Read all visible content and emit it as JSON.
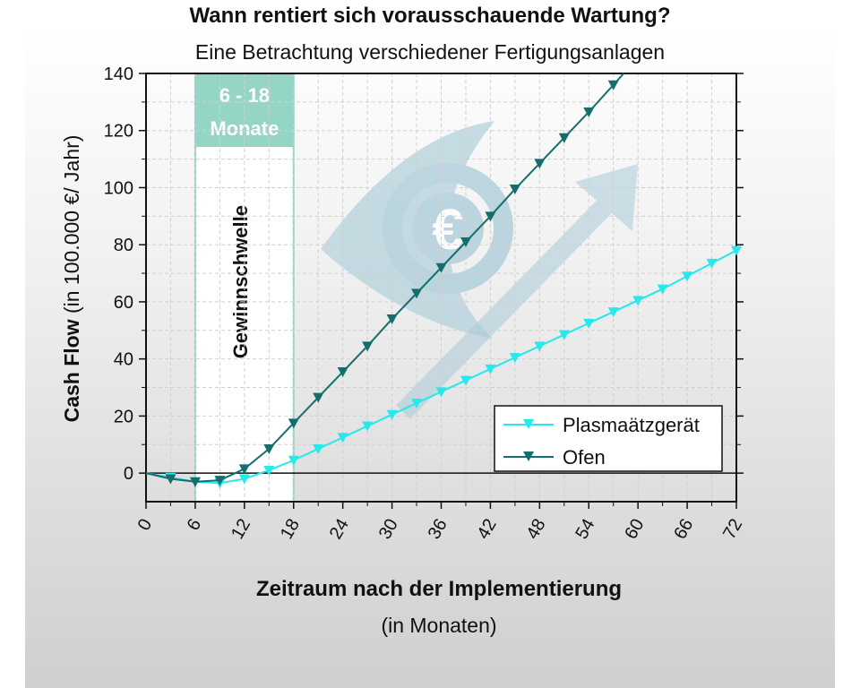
{
  "colors": {
    "plasma": "#27e8ea",
    "ofen": "#146e6e",
    "threshold_fill": "#8fd3c2",
    "watermark": "#a9cbd8"
  },
  "chart_data": {
    "type": "line",
    "title": "Wann rentiert sich vorausschauende Wartung?",
    "subtitle": "Eine Betrachtung verschiedener Fertigungsanlagen",
    "xlabel": "Zeitraum nach der Implementierung",
    "xlabel_sub": "(in Monaten)",
    "ylabel_bold": "Cash Flow",
    "ylabel_rest": " (in 100.000 €/ Jahr)",
    "xlim": [
      0,
      72
    ],
    "ylim": [
      -10,
      140
    ],
    "x_ticks": [
      0,
      6,
      12,
      18,
      24,
      30,
      36,
      42,
      48,
      54,
      60,
      66,
      72
    ],
    "y_ticks": [
      0,
      20,
      40,
      60,
      80,
      100,
      120,
      140
    ],
    "grid": true,
    "legend_position": "bottom-right",
    "threshold": {
      "range": [
        6,
        18
      ],
      "label_line1": "6 - 18",
      "label_line2": "Monate",
      "caption": "Gewinnschwelle"
    },
    "series": [
      {
        "name": "Plasmaätzgerät",
        "x": [
          0,
          3,
          6,
          9,
          12,
          15,
          18,
          21,
          24,
          27,
          30,
          33,
          36,
          39,
          42,
          45,
          48,
          51,
          54,
          57,
          60,
          63,
          66,
          69,
          72
        ],
        "y": [
          0,
          -1.5,
          -3,
          -3.5,
          -2,
          1,
          4.5,
          8.5,
          12.5,
          16.5,
          20.5,
          24.5,
          28.5,
          32.5,
          36.5,
          40.5,
          44.5,
          48.5,
          52.5,
          56.5,
          60.5,
          64.5,
          69,
          73.5,
          78
        ]
      },
      {
        "name": "Ofen",
        "x": [
          0,
          3,
          6,
          9,
          12,
          15,
          18,
          21,
          24,
          27,
          30,
          33,
          36,
          39,
          42,
          45,
          48,
          51,
          54,
          57
        ],
        "y": [
          0,
          -2,
          -3,
          -2.5,
          1.5,
          8.5,
          17.5,
          26.5,
          35.5,
          44.5,
          54,
          63,
          72,
          81,
          90,
          99.5,
          108.5,
          117.5,
          126.5,
          136
        ]
      }
    ]
  }
}
